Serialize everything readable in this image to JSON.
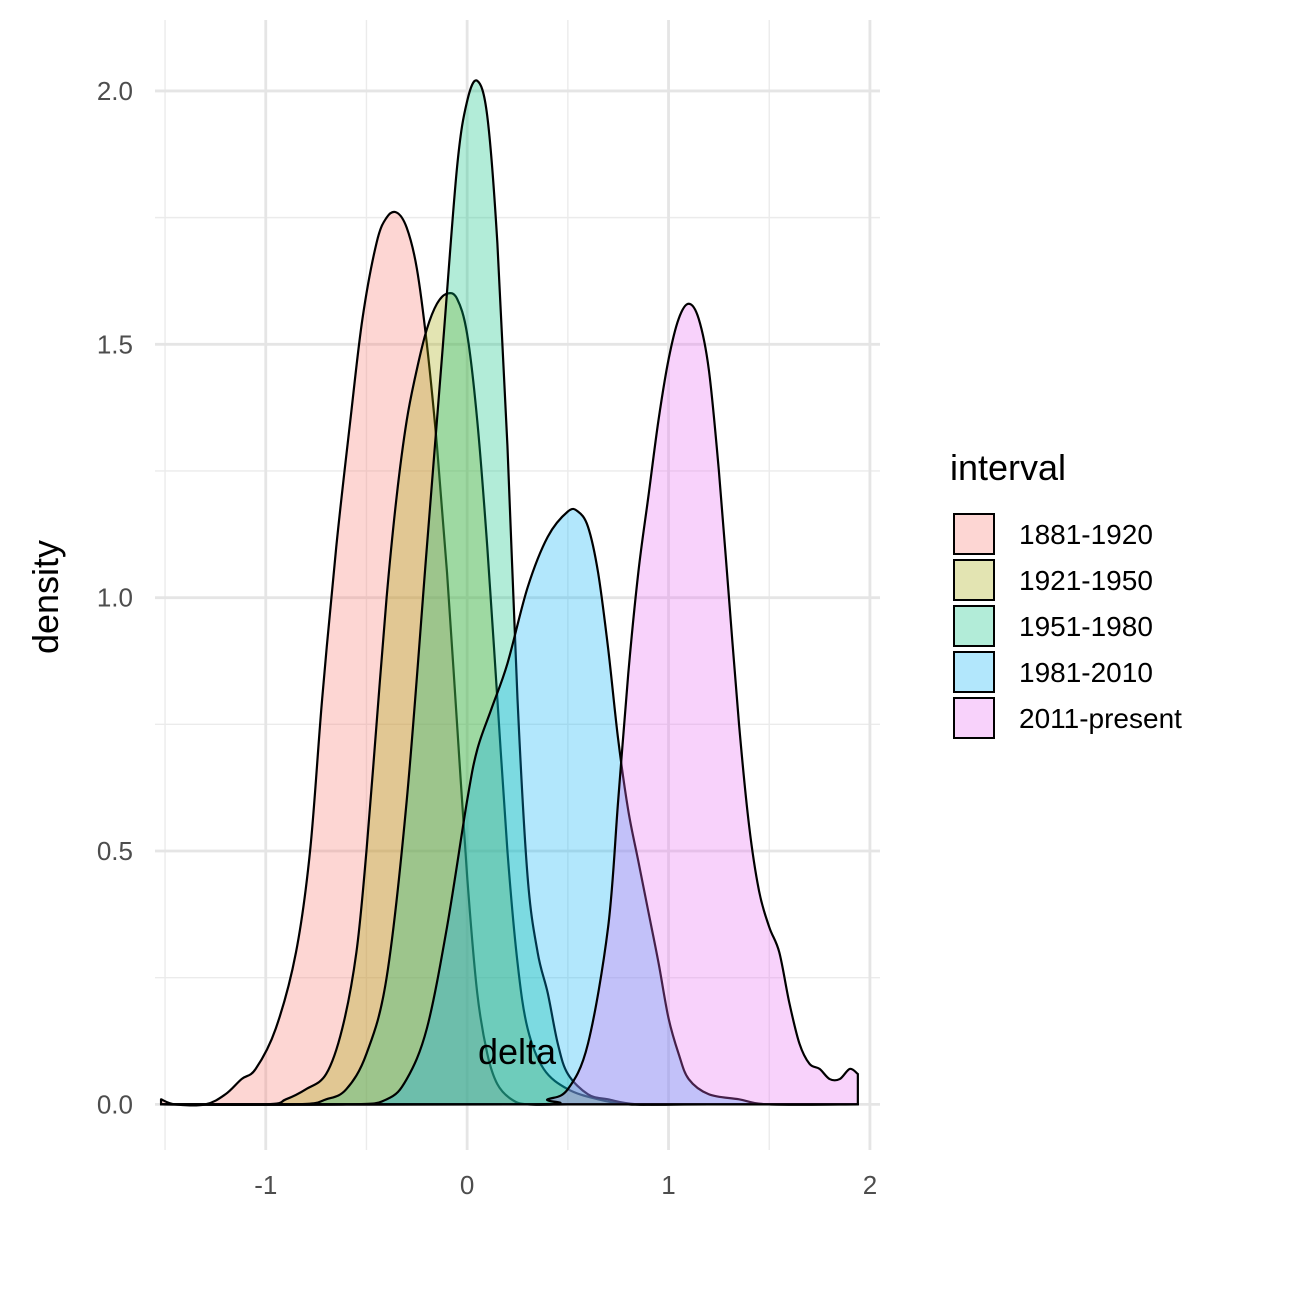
{
  "chart_data": {
    "type": "area",
    "subtype": "density",
    "xlabel": "delta",
    "ylabel": "density",
    "xlim": [
      -1.55,
      2.05
    ],
    "ylim": [
      -0.09,
      2.14
    ],
    "x_ticks": [
      -1,
      0,
      1,
      2
    ],
    "x_tick_labels": [
      "-1",
      "0",
      "1",
      "2"
    ],
    "y_ticks": [
      0,
      0.5,
      1,
      1.5,
      2
    ],
    "y_tick_labels": [
      "0.0",
      "0.5",
      "1.0",
      "1.5",
      "2.0"
    ],
    "grid": true,
    "legend": {
      "title": "interval",
      "position": "right"
    },
    "fill_opacity": 0.3,
    "outline_color": "#000000",
    "series": [
      {
        "name": "1881-1920",
        "color": "#F8766D",
        "points": [
          [
            -1.52,
            0.01
          ],
          [
            -1.45,
            0.0
          ],
          [
            -1.3,
            0.0
          ],
          [
            -1.2,
            0.02
          ],
          [
            -1.12,
            0.05
          ],
          [
            -1.05,
            0.07
          ],
          [
            -0.95,
            0.15
          ],
          [
            -0.85,
            0.3
          ],
          [
            -0.78,
            0.5
          ],
          [
            -0.72,
            0.8
          ],
          [
            -0.65,
            1.1
          ],
          [
            -0.58,
            1.35
          ],
          [
            -0.52,
            1.55
          ],
          [
            -0.45,
            1.7
          ],
          [
            -0.4,
            1.75
          ],
          [
            -0.35,
            1.76
          ],
          [
            -0.3,
            1.73
          ],
          [
            -0.25,
            1.65
          ],
          [
            -0.2,
            1.5
          ],
          [
            -0.15,
            1.3
          ],
          [
            -0.1,
            1.05
          ],
          [
            -0.05,
            0.75
          ],
          [
            0.0,
            0.45
          ],
          [
            0.05,
            0.22
          ],
          [
            0.1,
            0.1
          ],
          [
            0.15,
            0.04
          ],
          [
            0.22,
            0.01
          ],
          [
            0.3,
            0.0
          ],
          [
            0.5,
            0.0
          ],
          [
            0.7,
            0.0
          ],
          [
            1.0,
            0.0
          ],
          [
            1.3,
            0.0
          ],
          [
            1.6,
            0.0
          ],
          [
            1.94,
            0.0
          ]
        ]
      },
      {
        "name": "1921-1950",
        "color": "#A3A500",
        "points": [
          [
            -1.52,
            0.0
          ],
          [
            -1.0,
            0.0
          ],
          [
            -0.9,
            0.01
          ],
          [
            -0.8,
            0.03
          ],
          [
            -0.7,
            0.06
          ],
          [
            -0.62,
            0.15
          ],
          [
            -0.55,
            0.3
          ],
          [
            -0.5,
            0.5
          ],
          [
            -0.45,
            0.75
          ],
          [
            -0.4,
            1.0
          ],
          [
            -0.35,
            1.2
          ],
          [
            -0.3,
            1.35
          ],
          [
            -0.25,
            1.45
          ],
          [
            -0.2,
            1.53
          ],
          [
            -0.15,
            1.58
          ],
          [
            -0.1,
            1.6
          ],
          [
            -0.05,
            1.59
          ],
          [
            0.0,
            1.52
          ],
          [
            0.05,
            1.35
          ],
          [
            0.1,
            1.1
          ],
          [
            0.15,
            0.8
          ],
          [
            0.2,
            0.5
          ],
          [
            0.25,
            0.28
          ],
          [
            0.3,
            0.15
          ],
          [
            0.38,
            0.07
          ],
          [
            0.5,
            0.03
          ],
          [
            0.65,
            0.01
          ],
          [
            0.8,
            0.0
          ],
          [
            1.0,
            0.0
          ],
          [
            1.5,
            0.0
          ],
          [
            1.94,
            0.0
          ]
        ]
      },
      {
        "name": "1951-1980",
        "color": "#00BF7D",
        "points": [
          [
            -1.52,
            0.0
          ],
          [
            -0.85,
            0.0
          ],
          [
            -0.7,
            0.01
          ],
          [
            -0.6,
            0.03
          ],
          [
            -0.5,
            0.1
          ],
          [
            -0.4,
            0.25
          ],
          [
            -0.3,
            0.6
          ],
          [
            -0.2,
            1.1
          ],
          [
            -0.12,
            1.5
          ],
          [
            -0.05,
            1.85
          ],
          [
            0.0,
            1.98
          ],
          [
            0.05,
            2.02
          ],
          [
            0.1,
            1.95
          ],
          [
            0.15,
            1.7
          ],
          [
            0.2,
            1.3
          ],
          [
            0.25,
            0.8
          ],
          [
            0.3,
            0.45
          ],
          [
            0.35,
            0.3
          ],
          [
            0.4,
            0.22
          ],
          [
            0.45,
            0.12
          ],
          [
            0.5,
            0.06
          ],
          [
            0.6,
            0.02
          ],
          [
            0.7,
            0.01
          ],
          [
            0.85,
            0.0
          ],
          [
            1.2,
            0.0
          ],
          [
            1.94,
            0.0
          ]
        ]
      },
      {
        "name": "1981-2010",
        "color": "#00B0F6",
        "points": [
          [
            -1.52,
            0.0
          ],
          [
            -0.6,
            0.0
          ],
          [
            -0.4,
            0.01
          ],
          [
            -0.3,
            0.05
          ],
          [
            -0.2,
            0.15
          ],
          [
            -0.1,
            0.35
          ],
          [
            0.0,
            0.6
          ],
          [
            0.05,
            0.7
          ],
          [
            0.12,
            0.78
          ],
          [
            0.2,
            0.87
          ],
          [
            0.3,
            1.02
          ],
          [
            0.4,
            1.12
          ],
          [
            0.5,
            1.17
          ],
          [
            0.55,
            1.17
          ],
          [
            0.6,
            1.14
          ],
          [
            0.65,
            1.05
          ],
          [
            0.7,
            0.9
          ],
          [
            0.75,
            0.72
          ],
          [
            0.8,
            0.58
          ],
          [
            0.85,
            0.48
          ],
          [
            0.9,
            0.38
          ],
          [
            0.95,
            0.28
          ],
          [
            1.0,
            0.17
          ],
          [
            1.05,
            0.1
          ],
          [
            1.1,
            0.05
          ],
          [
            1.2,
            0.02
          ],
          [
            1.35,
            0.01
          ],
          [
            1.5,
            0.0
          ],
          [
            1.94,
            0.0
          ]
        ]
      },
      {
        "name": "2011-present",
        "color": "#E76BF3",
        "points": [
          [
            -1.52,
            0.0
          ],
          [
            0.3,
            0.0
          ],
          [
            0.4,
            0.01
          ],
          [
            0.5,
            0.03
          ],
          [
            0.6,
            0.12
          ],
          [
            0.7,
            0.35
          ],
          [
            0.75,
            0.6
          ],
          [
            0.8,
            0.85
          ],
          [
            0.85,
            1.05
          ],
          [
            0.9,
            1.2
          ],
          [
            0.95,
            1.35
          ],
          [
            1.0,
            1.47
          ],
          [
            1.05,
            1.55
          ],
          [
            1.1,
            1.58
          ],
          [
            1.15,
            1.55
          ],
          [
            1.2,
            1.45
          ],
          [
            1.25,
            1.25
          ],
          [
            1.3,
            1.0
          ],
          [
            1.35,
            0.75
          ],
          [
            1.4,
            0.55
          ],
          [
            1.45,
            0.42
          ],
          [
            1.5,
            0.35
          ],
          [
            1.55,
            0.3
          ],
          [
            1.6,
            0.2
          ],
          [
            1.65,
            0.12
          ],
          [
            1.7,
            0.08
          ],
          [
            1.75,
            0.07
          ],
          [
            1.8,
            0.05
          ],
          [
            1.85,
            0.05
          ],
          [
            1.9,
            0.07
          ],
          [
            1.94,
            0.06
          ]
        ]
      }
    ]
  }
}
